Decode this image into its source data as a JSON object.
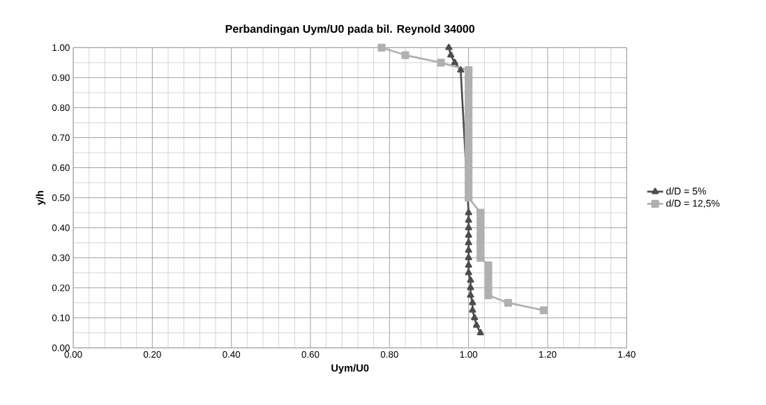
{
  "chart_data": {
    "type": "line",
    "title": "Perbandingan Uym/U0 pada bil. Reynold 34000",
    "xlabel": "Uym/U0",
    "ylabel": "y/h",
    "xlim": [
      0,
      1.4
    ],
    "xticks": [
      {
        "value": 0,
        "label": "0.00"
      },
      {
        "value": 0.2,
        "label": "0.20"
      },
      {
        "value": 0.4,
        "label": "0.40"
      },
      {
        "value": 0.6,
        "label": "0.60"
      },
      {
        "value": 0.8,
        "label": "0.80"
      },
      {
        "value": 1.0,
        "label": "1.00"
      },
      {
        "value": 1.2,
        "label": "1.20"
      },
      {
        "value": 1.4,
        "label": "1.40"
      }
    ],
    "ylim": [
      0,
      1
    ],
    "yticks": [
      {
        "value": 0,
        "label": "0.00"
      },
      {
        "value": 0.1,
        "label": "0.10"
      },
      {
        "value": 0.2,
        "label": "0.20"
      },
      {
        "value": 0.3,
        "label": "0.30"
      },
      {
        "value": 0.4,
        "label": "0.40"
      },
      {
        "value": 0.5,
        "label": "0.50"
      },
      {
        "value": 0.6,
        "label": "0.60"
      },
      {
        "value": 0.7,
        "label": "0.70"
      },
      {
        "value": 0.8,
        "label": "0.80"
      },
      {
        "value": 0.9,
        "label": "0.90"
      },
      {
        "value": 1.0,
        "label": "1.00"
      }
    ],
    "grid": true,
    "legend": "right",
    "series": [
      {
        "name": "d/D = 5%",
        "color": "#4d4d4d",
        "marker": "triangle",
        "x": [
          0.95,
          0.955,
          0.965,
          0.98,
          1.0,
          1.0,
          1.0,
          1.0,
          1.0,
          1.0,
          1.0,
          1.0,
          1.0,
          1.005,
          1.005,
          1.005,
          1.01,
          1.01,
          1.015,
          1.02,
          1.03
        ],
        "values": [
          1.0,
          0.975,
          0.95,
          0.925,
          0.45,
          0.425,
          0.4,
          0.375,
          0.35,
          0.325,
          0.3,
          0.275,
          0.25,
          0.225,
          0.2,
          0.175,
          0.15,
          0.125,
          0.1,
          0.075,
          0.05
        ]
      },
      {
        "name": "d/D = 12,5%",
        "color": "#b0b0b0",
        "marker": "square",
        "x": [
          0.78,
          0.84,
          0.93,
          1.0,
          1.0,
          1.0,
          1.0,
          1.0,
          1.0,
          1.0,
          1.0,
          1.0,
          1.0,
          1.0,
          1.0,
          1.0,
          1.0,
          1.0,
          1.0,
          1.0,
          1.0,
          1.03,
          1.03,
          1.03,
          1.03,
          1.03,
          1.03,
          1.03,
          1.05,
          1.05,
          1.05,
          1.05,
          1.05,
          1.1,
          1.19
        ],
        "values": [
          1.0,
          0.975,
          0.95,
          0.925,
          0.9,
          0.875,
          0.85,
          0.825,
          0.8,
          0.775,
          0.75,
          0.725,
          0.7,
          0.675,
          0.65,
          0.625,
          0.6,
          0.575,
          0.55,
          0.525,
          0.5,
          0.45,
          0.425,
          0.4,
          0.375,
          0.35,
          0.325,
          0.3,
          0.275,
          0.25,
          0.225,
          0.2,
          0.175,
          0.15,
          0.125
        ]
      }
    ]
  }
}
